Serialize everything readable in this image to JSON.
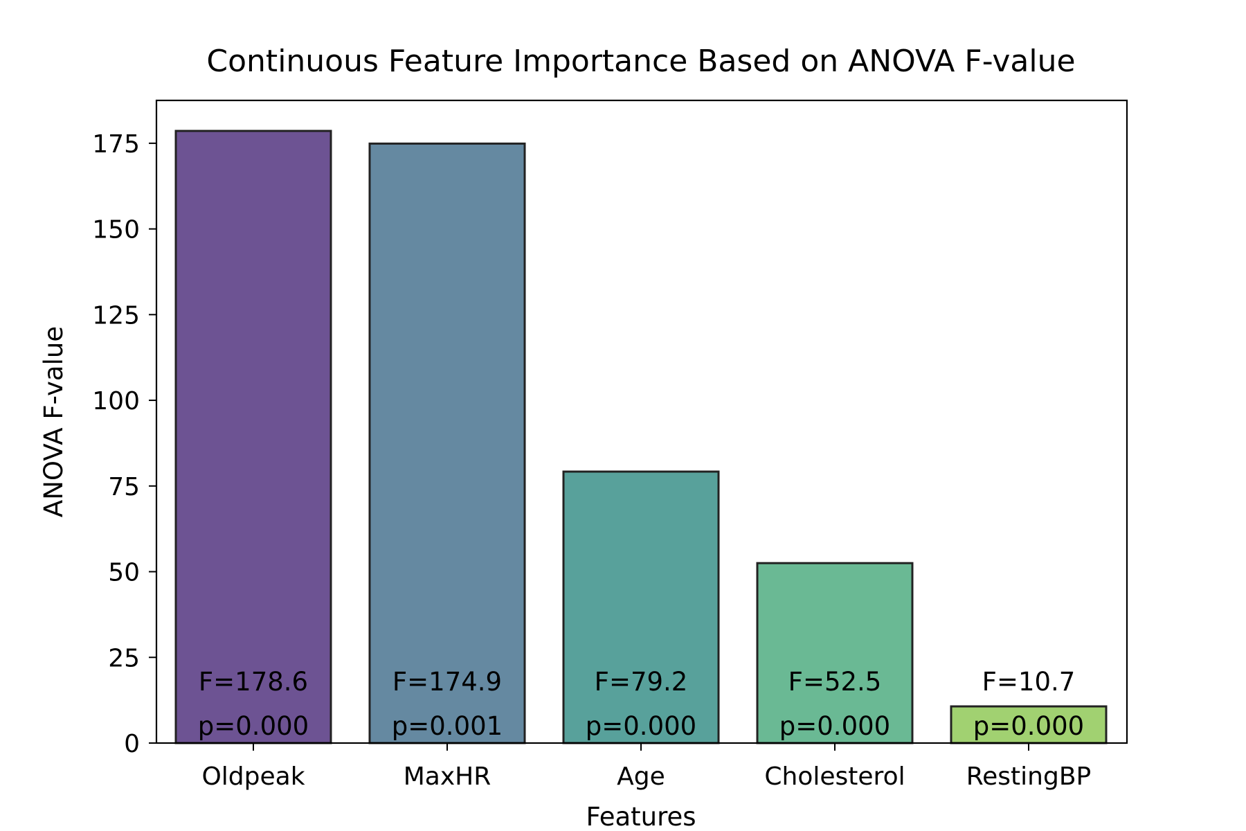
{
  "chart_data": {
    "type": "bar",
    "title": "Continuous Feature Importance Based on ANOVA F-value",
    "xlabel": "Features",
    "ylabel": "ANOVA F-value",
    "categories": [
      "Oldpeak",
      "MaxHR",
      "Age",
      "Cholesterol",
      "RestingBP"
    ],
    "values": [
      178.6,
      174.9,
      79.2,
      52.5,
      10.7
    ],
    "f_labels": [
      "F=178.6",
      "F=174.9",
      "F=79.2",
      "F=52.5",
      "F=10.7"
    ],
    "p_labels": [
      "p=0.000",
      "p=0.001",
      "p=0.000",
      "p=0.000",
      "p=0.000"
    ],
    "colors": [
      "#482878",
      "#3e6b8a",
      "#2e8a82",
      "#45a879",
      "#8ac64e"
    ],
    "ylim": [
      0,
      187.5
    ],
    "yticks": [
      0,
      25,
      50,
      75,
      100,
      125,
      150,
      175
    ],
    "grid": false,
    "legend": "none"
  }
}
